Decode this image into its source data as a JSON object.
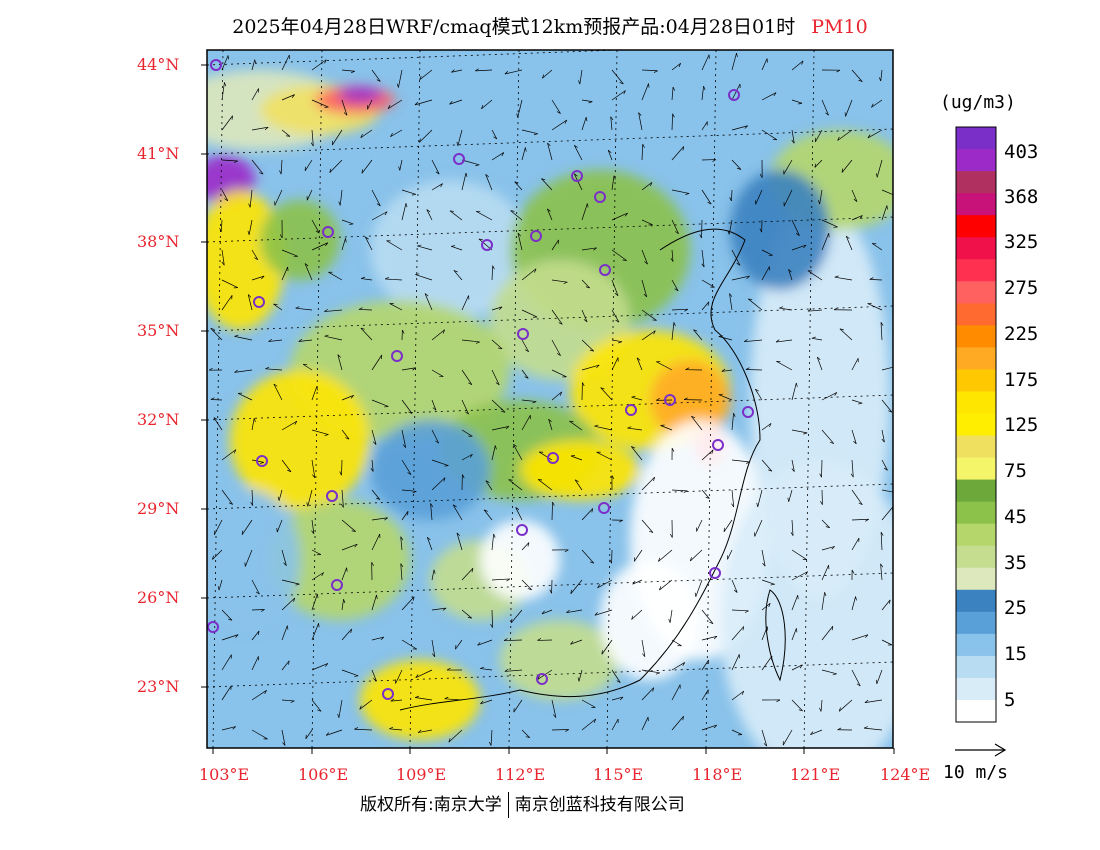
{
  "title": {
    "main": "2025年04月28日WRF/cmaq模式12km预报产品:04月28日01时",
    "variable": "PM10"
  },
  "colorbar": {
    "units": "(ug/m3)",
    "labels": [
      "403",
      "368",
      "325",
      "275",
      "225",
      "175",
      "125",
      "75",
      "45",
      "35",
      "25",
      "15",
      "5"
    ],
    "colors": [
      "#7b2fc9",
      "#9c2ac9",
      "#b03060",
      "#c8127a",
      "#ff0000",
      "#f0104a",
      "#ff3050",
      "#ff6060",
      "#ff6a30",
      "#ff8c00",
      "#ffaa22",
      "#ffc800",
      "#ffe600",
      "#ffee00",
      "#f0e060",
      "#f5f56a",
      "#6ca83a",
      "#8cc14a",
      "#b5d66b",
      "#c4dd8e",
      "#dde8bc",
      "#3b82c0",
      "#5aa0d8",
      "#89c2ea",
      "#b8dcf2",
      "#d8ecf8",
      "#ffffff"
    ]
  },
  "lat_labels": [
    "44°N",
    "41°N",
    "38°N",
    "35°N",
    "32°N",
    "29°N",
    "26°N",
    "23°N"
  ],
  "lon_labels": [
    "103°E",
    "106°E",
    "109°E",
    "112°E",
    "115°E",
    "118°E",
    "121°E",
    "124°E"
  ],
  "vector_legend": "10 m/s",
  "copyright": {
    "left": "版权所有:南京大学",
    "right": "南京创蓝科技有限公司"
  }
}
